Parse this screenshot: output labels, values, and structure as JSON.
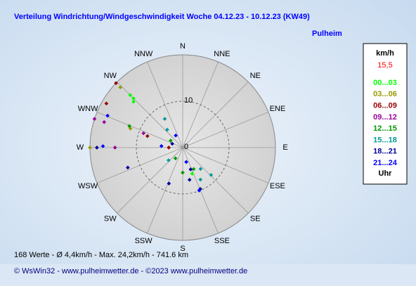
{
  "chart_data": {
    "type": "polar-scatter",
    "title": "Verteilung Windrichtung/Windgeschwindigkeit  Woche 04.12.23 - 10.12.23 (KW49)",
    "subtitle": "Pulheim",
    "directions": [
      "N",
      "NNE",
      "NE",
      "ENE",
      "E",
      "ESE",
      "SE",
      "SSE",
      "S",
      "SSW",
      "SW",
      "WSW",
      "W",
      "WNW",
      "NW",
      "NNW"
    ],
    "rlim": [
      0,
      20
    ],
    "rticks": [
      0,
      10
    ],
    "legend_title": "km/h",
    "legend_value": "15,5",
    "legend_footer": "Uhr",
    "series": [
      {
        "name": "00...03",
        "color": "#00ff00",
        "theta": [
          315,
          315,
          313,
          160
        ],
        "r": [
          16,
          15,
          14.5,
          6
        ]
      },
      {
        "name": "03...06",
        "color": "#999900",
        "theta": [
          314,
          270,
          290
        ],
        "r": [
          18.7,
          20,
          12
        ]
      },
      {
        "name": "06...09",
        "color": "#990000",
        "theta": [
          314,
          300,
          288,
          270
        ],
        "r": [
          20,
          19,
          8,
          3
        ]
      },
      {
        "name": "09...12",
        "color": "#990099",
        "theta": [
          288,
          288,
          270,
          290
        ],
        "r": [
          20,
          17.8,
          14.6,
          9
        ]
      },
      {
        "name": "12...15",
        "color": "#009900",
        "theta": [
          292,
          180,
          153,
          214,
          300
        ],
        "r": [
          12.4,
          5.4,
          5.2,
          2.8,
          3
        ]
      },
      {
        "name": "15...18",
        "color": "#009999",
        "theta": [
          328,
          319,
          151,
          134,
          228,
          140
        ],
        "r": [
          7.3,
          5.1,
          7.9,
          8.5,
          4.1,
          6
        ]
      },
      {
        "name": "18...21",
        "color": "#000099",
        "theta": [
          157,
          168,
          201,
          250,
          290,
          270,
          160
        ],
        "r": [
          9.7,
          7.1,
          8.3,
          12.6,
          2.4,
          18.5,
          5
        ]
      },
      {
        "name": "21...24",
        "color": "#0000ff",
        "theta": [
          271,
          293,
          159,
          166,
          274,
          330
        ],
        "r": [
          17.2,
          17.6,
          9.9,
          3.2,
          4.6,
          3
        ]
      }
    ],
    "summary": "168 Werte   -   Ø 4,4km/h  -  Max. 24,2km/h  -  741.6 km",
    "footer": "© WsWin32  -  www.pulheimwetter.de  -  ©2023 www.pulheimwetter.de"
  }
}
